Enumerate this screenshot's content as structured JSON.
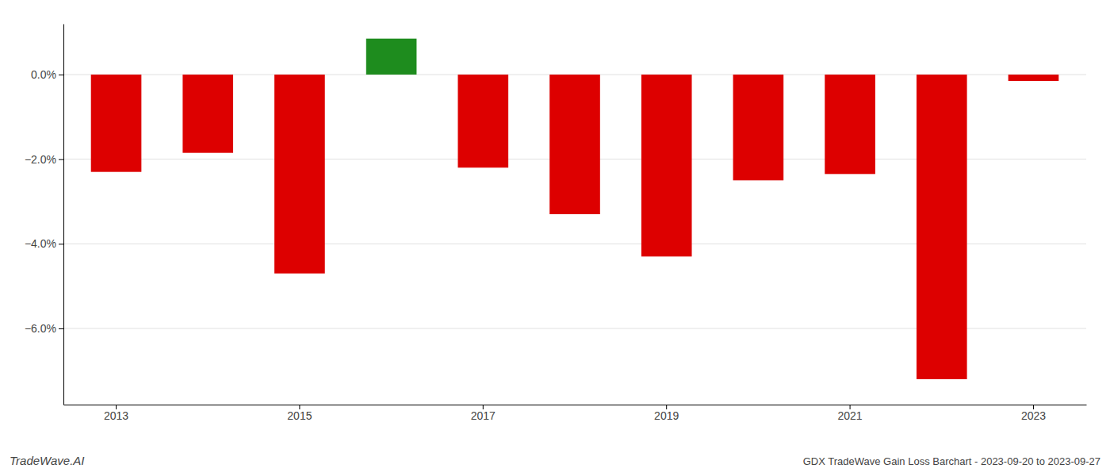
{
  "chart_data": {
    "type": "bar",
    "categories": [
      "2013",
      null,
      "2015",
      null,
      "2017",
      null,
      "2019",
      null,
      "2021",
      null,
      "2023"
    ],
    "values": [
      -2.3,
      -1.85,
      -4.7,
      0.85,
      -2.2,
      -3.3,
      -4.3,
      -2.5,
      -2.35,
      -7.2,
      -0.15
    ],
    "colors": [
      "#dd0000",
      "#dd0000",
      "#dd0000",
      "#1e8c1e",
      "#dd0000",
      "#dd0000",
      "#dd0000",
      "#dd0000",
      "#dd0000",
      "#dd0000",
      "#dd0000"
    ],
    "ylim": [
      -7.8,
      1.2
    ],
    "yticks": [
      {
        "value": 0.0,
        "label": "0.0%"
      },
      {
        "value": -2.0,
        "label": "−2.0%"
      },
      {
        "value": -4.0,
        "label": "−4.0%"
      },
      {
        "value": -6.0,
        "label": "−6.0%"
      }
    ],
    "grid": true,
    "annotations": [
      "TradeWave.AI",
      "GDX TradeWave Gain Loss Barchart - 2023-09-20 to 2023-09-27"
    ]
  }
}
